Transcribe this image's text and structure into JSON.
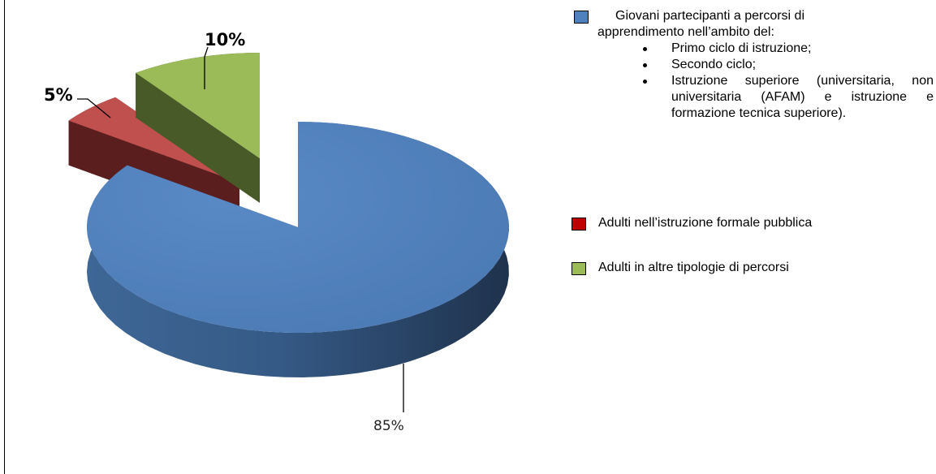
{
  "chart_data": {
    "type": "pie",
    "title": "",
    "slices": [
      {
        "label": "85%",
        "value": 85,
        "color": "#4f81bd"
      },
      {
        "label": "5%",
        "value": 5,
        "color": "#c0504d"
      },
      {
        "label": "10%",
        "value": 10,
        "color": "#9bbb59"
      }
    ]
  },
  "legend": {
    "entry1": {
      "line1": "Giovani partecipanti a percorsi di",
      "line2": "apprendimento nell’ambito del:",
      "bullets": [
        "Primo ciclo di istruzione;",
        "Secondo ciclo;",
        "Istruzione superiore (universitaria, non universitaria (AFAM) e istruzione e formazione tecnica superiore)."
      ]
    },
    "entry2": "Adulti nell’istruzione formale pubblica",
    "entry3": "Adulti in altre tipologie di percorsi"
  }
}
